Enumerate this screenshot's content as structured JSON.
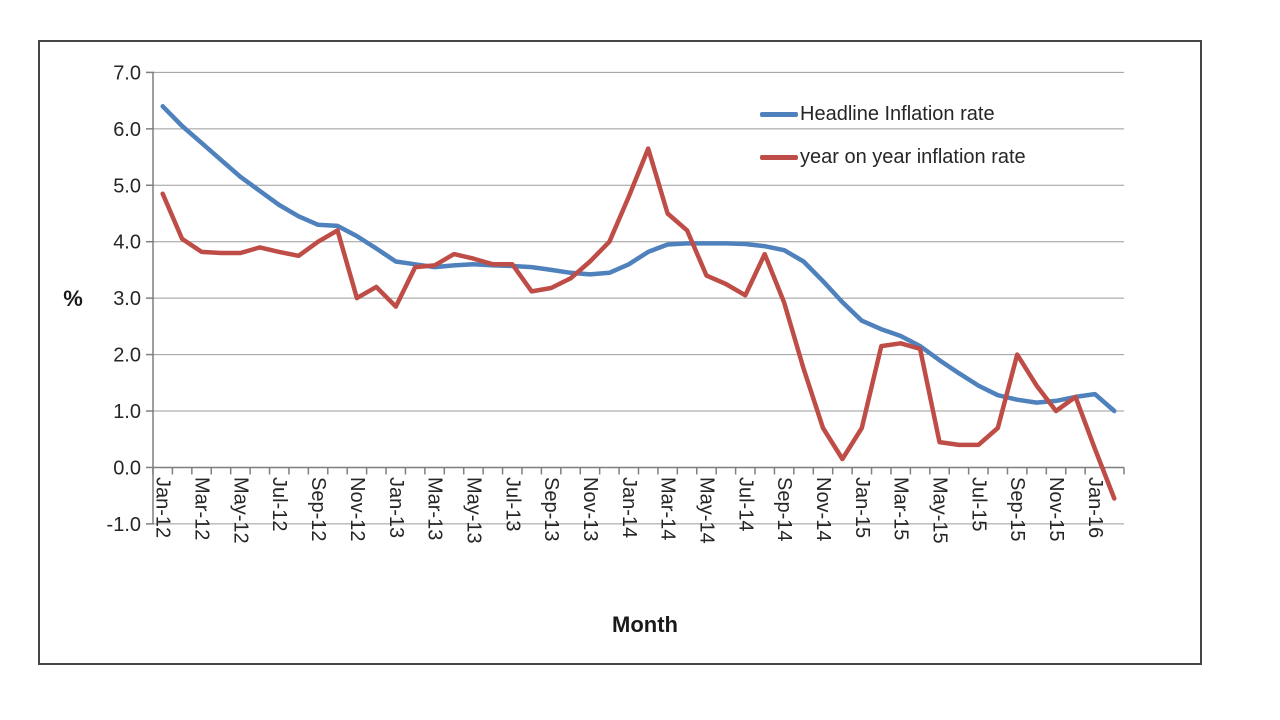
{
  "chart_data": {
    "type": "line",
    "title": "",
    "xlabel": "Month",
    "ylabel": "%",
    "ylim": [
      -1.0,
      7.0
    ],
    "grid": true,
    "legend_position": "top-right-inside",
    "y_ticks": [
      "7.0",
      "6.0",
      "5.0",
      "4.0",
      "3.0",
      "2.0",
      "1.0",
      "0.0",
      "-1.0"
    ],
    "x": [
      "Jan-12",
      "Feb-12",
      "Mar-12",
      "Apr-12",
      "May-12",
      "Jun-12",
      "Jul-12",
      "Aug-12",
      "Sep-12",
      "Oct-12",
      "Nov-12",
      "Dec-12",
      "Jan-13",
      "Feb-13",
      "Mar-13",
      "Apr-13",
      "May-13",
      "Jun-13",
      "Jul-13",
      "Aug-13",
      "Sep-13",
      "Oct-13",
      "Nov-13",
      "Dec-13",
      "Jan-14",
      "Feb-14",
      "Mar-14",
      "Apr-14",
      "May-14",
      "Jun-14",
      "Jul-14",
      "Aug-14",
      "Sep-14",
      "Oct-14",
      "Nov-14",
      "Dec-14",
      "Jan-15",
      "Feb-15",
      "Mar-15",
      "Apr-15",
      "May-15",
      "Jun-15",
      "Jul-15",
      "Aug-15",
      "Sep-15",
      "Oct-15",
      "Nov-15",
      "Dec-15",
      "Jan-16",
      "Feb-16"
    ],
    "x_tick_labels": [
      "Jan-12",
      "Mar-12",
      "May-12",
      "Jul-12",
      "Sep-12",
      "Nov-12",
      "Jan-13",
      "Mar-13",
      "May-13",
      "Jul-13",
      "Sep-13",
      "Nov-13",
      "Jan-14",
      "Mar-14",
      "May-14",
      "Jul-14",
      "Sep-14",
      "Nov-14",
      "Jan-15",
      "Mar-15",
      "May-15",
      "Jul-15",
      "Sep-15",
      "Nov-15",
      "Jan-16"
    ],
    "series": [
      {
        "name": "Headline Inflation rate",
        "color": "#4F81BD",
        "values": [
          6.4,
          6.05,
          5.75,
          5.45,
          5.15,
          4.9,
          4.65,
          4.45,
          4.3,
          4.28,
          4.1,
          3.88,
          3.65,
          3.6,
          3.55,
          3.58,
          3.6,
          3.58,
          3.57,
          3.55,
          3.5,
          3.45,
          3.42,
          3.45,
          3.6,
          3.82,
          3.95,
          3.97,
          3.97,
          3.97,
          3.96,
          3.92,
          3.85,
          3.65,
          3.3,
          2.93,
          2.6,
          2.45,
          2.33,
          2.15,
          1.9,
          1.67,
          1.45,
          1.28,
          1.2,
          1.15,
          1.18,
          1.25,
          1.3,
          1.0
        ]
      },
      {
        "name": "year on year inflation rate",
        "color": "#BF4D47",
        "values": [
          4.85,
          4.05,
          3.82,
          3.8,
          3.8,
          3.9,
          3.82,
          3.75,
          4.0,
          4.2,
          3.0,
          3.2,
          2.85,
          3.55,
          3.58,
          3.78,
          3.7,
          3.6,
          3.6,
          3.12,
          3.18,
          3.35,
          3.65,
          4.0,
          4.8,
          5.65,
          4.5,
          4.2,
          3.4,
          3.25,
          3.05,
          3.78,
          2.92,
          1.75,
          0.7,
          0.15,
          0.7,
          2.15,
          2.2,
          2.1,
          0.45,
          0.4,
          0.4,
          0.7,
          2.0,
          1.45,
          1.0,
          1.25,
          0.33,
          -0.55
        ]
      }
    ],
    "colors": {
      "gridline": "#9b9b9b",
      "axis": "#7f7f7f",
      "tick_text": "#262626",
      "frame_border": "#454545"
    }
  }
}
